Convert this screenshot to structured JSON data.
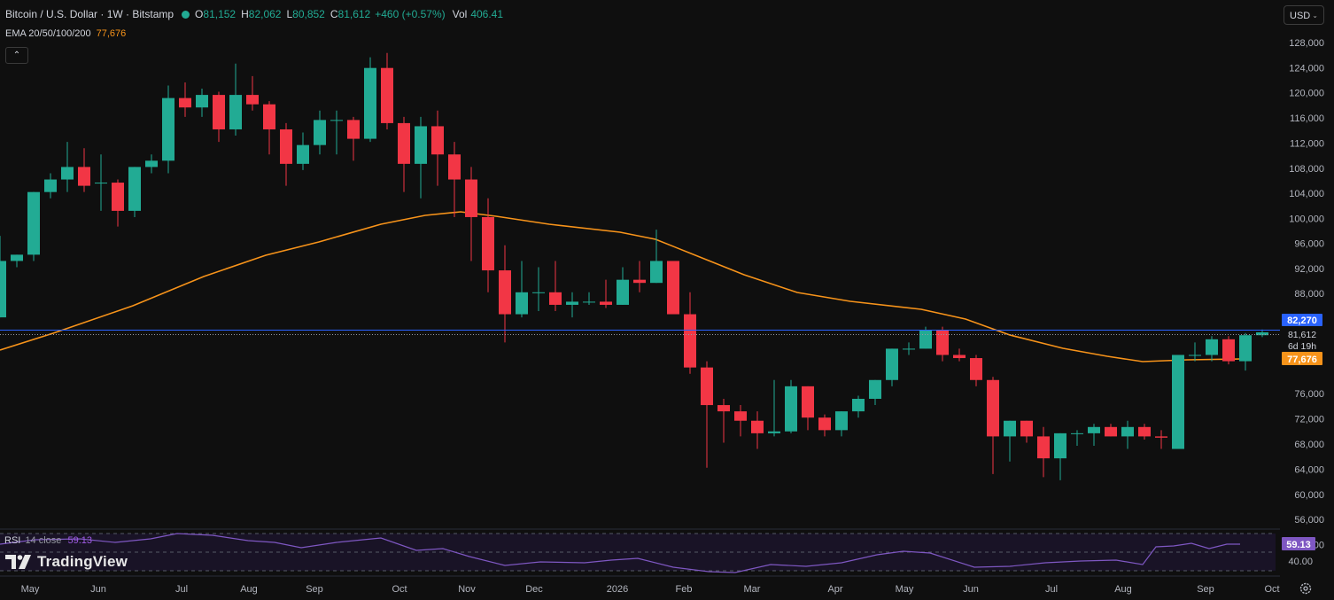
{
  "header": {
    "symbol": "Bitcoin / U.S. Dollar · 1W · Bitstamp",
    "open_label": "O",
    "open": "81,152",
    "high_label": "H",
    "high": "82,062",
    "low_label": "L",
    "low": "80,852",
    "close_label": "C",
    "close": "81,612",
    "change": "+460 (+0.57%)",
    "vol_label": "Vol",
    "vol": "406.41"
  },
  "indicators": {
    "ema_label": "EMA 20/50/100/200",
    "ema_value": "77,676",
    "collapse_icon": "chevron-up-icon",
    "rsi_label": "RSI",
    "rsi_params": "14 close",
    "rsi_value": "59.13"
  },
  "currency_selector": {
    "value": "USD",
    "icon": "chevron-down-icon"
  },
  "branding": {
    "logo_text": "TradingView",
    "icon": "tradingview-logo-icon"
  },
  "settings_icon": "gear-icon",
  "colors": {
    "up": "#22ab94",
    "down": "#f23645",
    "ema": "#f7931a",
    "rsi": "#7e57c2",
    "price_line": "#2962ff",
    "bg": "#0f0f0f"
  },
  "chart_data": {
    "type": "candlestick",
    "timeframe": "1W",
    "y_ticks": [
      "128,000",
      "124,000",
      "120,000",
      "116,000",
      "112,000",
      "108,000",
      "104,000",
      "100,000",
      "96,000",
      "92,000",
      "88,000",
      "76,000",
      "72,000",
      "68,000",
      "64,000",
      "60,000",
      "56,000",
      "52,000"
    ],
    "ylim": [
      50000,
      130000
    ],
    "x_labels": [
      "May",
      "Jun",
      "Jul",
      "Aug",
      "Sep",
      "Oct",
      "Nov",
      "Dec",
      "2026",
      "Feb",
      "Mar",
      "Apr",
      "May",
      "Jun",
      "Jul",
      "Aug",
      "Sep",
      "Oct"
    ],
    "price_labels": {
      "high_line": "82,270",
      "last_price": "81,612",
      "countdown": "6d 19h",
      "ema": "77,676"
    },
    "candles": [
      [
        84000,
        97000,
        84000,
        93000
      ],
      [
        93000,
        94000,
        92000,
        94000
      ],
      [
        94000,
        104000,
        93000,
        104000
      ],
      [
        104000,
        107000,
        103000,
        106000
      ],
      [
        106000,
        112000,
        104000,
        108000
      ],
      [
        108000,
        111000,
        104000,
        105000
      ],
      [
        105500,
        110000,
        101000,
        105500
      ],
      [
        105500,
        106000,
        98500,
        101000
      ],
      [
        101000,
        108000,
        100000,
        108000
      ],
      [
        108000,
        110000,
        107000,
        109000
      ],
      [
        109000,
        121000,
        107000,
        119000
      ],
      [
        119000,
        121500,
        116000,
        117500
      ],
      [
        117500,
        120500,
        116000,
        119500
      ],
      [
        119500,
        120000,
        112000,
        114000
      ],
      [
        114000,
        124500,
        113000,
        119500
      ],
      [
        119500,
        122500,
        117000,
        118000
      ],
      [
        118000,
        118500,
        110000,
        114000
      ],
      [
        114000,
        115000,
        105000,
        108500
      ],
      [
        108500,
        113500,
        107500,
        111500
      ],
      [
        111500,
        117000,
        110000,
        115500
      ],
      [
        115500,
        117000,
        110000,
        115500
      ],
      [
        115500,
        116000,
        109000,
        112500
      ],
      [
        112500,
        125500,
        112000,
        123800
      ],
      [
        123800,
        126200,
        114000,
        115000
      ],
      [
        115000,
        116000,
        104000,
        108500
      ],
      [
        108500,
        116000,
        103000,
        114500
      ],
      [
        114500,
        117000,
        105000,
        110000
      ],
      [
        110000,
        112000,
        100000,
        106000
      ],
      [
        106000,
        108000,
        93000,
        100000
      ],
      [
        100000,
        103000,
        88000,
        91500
      ],
      [
        91500,
        95500,
        80000,
        84500
      ],
      [
        84500,
        93000,
        84000,
        88000
      ],
      [
        88000,
        92000,
        85000,
        88000
      ],
      [
        88000,
        93000,
        85000,
        86000
      ],
      [
        86000,
        88000,
        84000,
        86500
      ],
      [
        86500,
        88000,
        86000,
        86500
      ],
      [
        86500,
        90000,
        85500,
        86000
      ],
      [
        86000,
        92000,
        86000,
        90000
      ],
      [
        90000,
        93000,
        88000,
        89500
      ],
      [
        89500,
        98000,
        89500,
        93000
      ],
      [
        93000,
        93000,
        84500,
        84500
      ],
      [
        84500,
        88000,
        75000,
        76000
      ],
      [
        76000,
        77000,
        60000,
        70000
      ],
      [
        70000,
        71000,
        64000,
        69000
      ],
      [
        69000,
        70000,
        65000,
        67500
      ],
      [
        67500,
        69000,
        63000,
        65500
      ],
      [
        65500,
        74000,
        65000,
        65800
      ],
      [
        65800,
        74000,
        65500,
        73000
      ],
      [
        73000,
        73000,
        66000,
        68000
      ],
      [
        68000,
        68500,
        65000,
        66000
      ],
      [
        66000,
        69000,
        65000,
        69000
      ],
      [
        69000,
        71500,
        68000,
        71000
      ],
      [
        71000,
        74000,
        70000,
        74000
      ],
      [
        74000,
        79000,
        73000,
        79000
      ],
      [
        79000,
        80000,
        78000,
        79000
      ],
      [
        79000,
        82500,
        79000,
        82000
      ],
      [
        82000,
        82500,
        77000,
        78000
      ],
      [
        78000,
        79000,
        77000,
        77500
      ],
      [
        77500,
        78000,
        73000,
        74000
      ],
      [
        74000,
        74500,
        59000,
        65000
      ],
      [
        65000,
        67500,
        61000,
        67500
      ],
      [
        67500,
        67500,
        64000,
        65000
      ],
      [
        65000,
        66500,
        58500,
        61500
      ],
      [
        61500,
        65500,
        58000,
        65500
      ],
      [
        65500,
        66000,
        63500,
        65500
      ],
      [
        65500,
        67000,
        63500,
        66500
      ],
      [
        66500,
        67000,
        65000,
        65000
      ],
      [
        65000,
        67500,
        63000,
        66500
      ],
      [
        66500,
        67000,
        64500,
        65000
      ],
      [
        65000,
        66000,
        63000,
        64800
      ],
      [
        63000,
        78000,
        63000,
        78000
      ],
      [
        78000,
        80000,
        77000,
        78000
      ],
      [
        78000,
        81000,
        77000,
        80500
      ],
      [
        80500,
        81000,
        76500,
        77000
      ],
      [
        77000,
        81500,
        75500,
        81152
      ],
      [
        81152,
        82062,
        80852,
        81612
      ]
    ],
    "ema_label_value": 77676,
    "rsi": {
      "period": 14,
      "source": "close",
      "value": 59.13,
      "ylim": [
        20,
        90
      ],
      "tick": "40.00"
    }
  }
}
